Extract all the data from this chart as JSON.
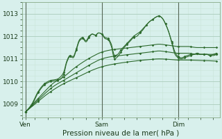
{
  "title": "Pression niveau de la mer( hPa )",
  "bg_color": "#d8f0ec",
  "grid_color_major": "#aaccbb",
  "grid_color_minor": "#c8e4d8",
  "line_color": "#2d6a2d",
  "line_color_light": "#4a8a4a",
  "yticks": [
    1009,
    1010,
    1011,
    1012,
    1013
  ],
  "xtick_labels": [
    "Ven",
    "Sam",
    "Dim"
  ],
  "xlim": [
    -2,
    122
  ],
  "ylim": [
    1008.4,
    1013.5
  ],
  "vline_color": "#556655",
  "spine_color": "#88aa88",
  "xlabel_size": 7.5,
  "tick_size": 6.5
}
